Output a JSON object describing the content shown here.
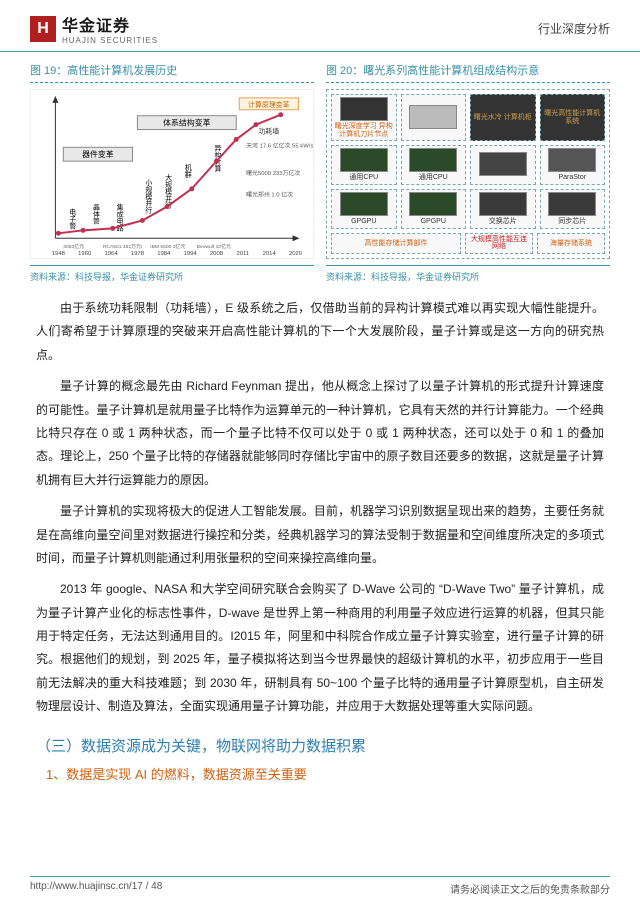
{
  "header": {
    "logo_initial": "H",
    "logo_cn": "华金证券",
    "logo_en": "HUAJIN SECURITIES",
    "breadcrumb": "行业深度分析"
  },
  "figures": {
    "left": {
      "title": "图 19：高性能计算机发展历史",
      "source": "资料来源：科技导报，华金证券研究所",
      "phase1": "器件变革",
      "phase2": "体系结构变革",
      "phase3": "计算原理变革",
      "phase3b": "功耗墙",
      "y1": "电子管",
      "y2": "晶体管",
      "y3": "集成电路",
      "c1": "小规模并行",
      "c2": "大规模并行",
      "c3": "机群",
      "c4": "异构计算",
      "note1": "天河 17.6 亿亿次\\n55 kW/s",
      "note2": "曙光5000\\n233万亿次",
      "note3": "曙光郑州\\n1.0 亿次",
      "bottom1": "3053亿元",
      "bottom2": "RCA501\\n461万元/",
      "bottom3": "IBM 6600\\n3亿元",
      "bottom4": "Beowulf\\n10亿元",
      "xticks": [
        "1948",
        "1960",
        "1964",
        "1978",
        "1984",
        "1994",
        "2008",
        "2011",
        "2014",
        "2020"
      ],
      "curve_points": [
        [
          25,
          145
        ],
        [
          50,
          142
        ],
        [
          80,
          140
        ],
        [
          110,
          132
        ],
        [
          135,
          118
        ],
        [
          160,
          100
        ],
        [
          185,
          72
        ],
        [
          205,
          50
        ],
        [
          225,
          35
        ],
        [
          250,
          25
        ]
      ],
      "curve_color": "#c03050",
      "axis_color": "#333333"
    },
    "right": {
      "title": "图 20：曙光系列高性能计算机组成结构示意",
      "source": "资料来源：科技导报，华金证券研究所",
      "r1c1": "曙光深度学习\\n异构计算机刀片节点",
      "r1c2": "",
      "r1c3": "曙光水冷\\n计算机柜",
      "r1c4": "曙光高性能计算机系统",
      "r2c1": "通用CPU",
      "r2c2": "通用CPU",
      "r2c3": "",
      "r2c4": "ParaStor",
      "r3c1": "GPGPU",
      "r3c2": "GPGPU",
      "r3c3": "交换芯片",
      "r3c4": "同步芯片",
      "r4c4": "海量存储系统",
      "bottom_left": "高性能存储计算部件",
      "bottom_right": "大规模高性能互连网络"
    }
  },
  "body": {
    "p1": "由于系统功耗限制（功耗墙），E 级系统之后，仅借助当前的异构计算模式难以再实现大幅性能提升。人们寄希望于计算原理的突破来开启高性能计算机的下一个大发展阶段，量子计算或是这一方向的研究热点。",
    "p2": "量子计算的概念最先由 Richard Feynman 提出，他从概念上探讨了以量子计算机的形式提升计算速度的可能性。量子计算机是就用量子比特作为运算单元的一种计算机，它具有天然的并行计算能力。一个经典比特只存在 0 或 1 两种状态，而一个量子比特不仅可以处于 0 或 1 两种状态，还可以处于 0 和 1 的叠加态。理论上，250 个量子比特的存储器就能够同时存储比宇宙中的原子数目还要多的数据，这就是量子计算机拥有巨大并行运算能力的原因。",
    "p3": "量子计算机的实现将极大的促进人工智能发展。目前，机器学习识别数据呈现出来的趋势，主要任务就是在高维向量空间里对数据进行操控和分类，经典机器学习的算法受制于数据量和空间维度所决定的多项式时间，而量子计算机则能通过利用张量积的空间来操控高维向量。",
    "p4": "2013 年 google、NASA 和大学空间研究联合会购买了 D-Wave 公司的 “D-Wave Two” 量子计算机，成为量子计算产业化的标志性事件，D-wave 是世界上第一种商用的利用量子效应进行运算的机器，但其只能用于特定任务，无法达到通用目的。I2015 年，阿里和中科院合作成立量子计算实验室，进行量子计算的研究。根据他们的规划，到 2025 年，量子模拟将达到当今世界最快的超级计算机的水平，初步应用于一些目前无法解决的重大科技难题；到 2030 年，研制具有 50~100 个量子比特的通用量子计算原型机，自主研发物理层设计、制造及算法，全面实现通用量子计算功能，并应用于大数据处理等重大实际问题。"
  },
  "headings": {
    "section_blue": "（三）数据资源成为关键，物联网将助力数据积累",
    "section_orange": "1、数据是实现 AI 的燃料，数据资源至关重要"
  },
  "footer": {
    "url": "http://www.huajinsc.cn/17 / 48",
    "disclaimer": "请务必阅读正文之后的免责条款部分"
  }
}
